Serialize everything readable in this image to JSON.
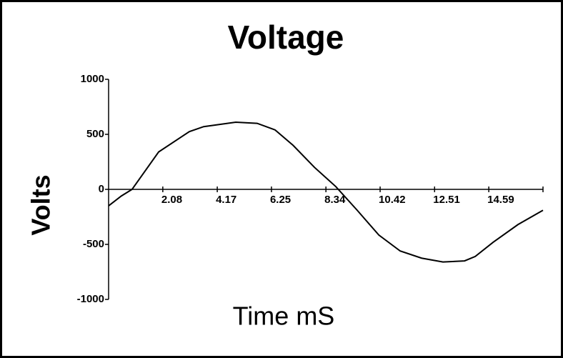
{
  "chart_data": {
    "type": "line",
    "title": "Voltage",
    "x_label": "Time mS",
    "y_label": "Volts",
    "x": [
      0,
      0.49,
      0.9,
      1.92,
      3.1,
      3.65,
      4.88,
      5.7,
      6.39,
      7.08,
      7.9,
      8.72,
      9.54,
      10.37,
      11.19,
      12.01,
      12.83,
      13.66,
      14.07,
      14.76,
      15.71,
      16.67
    ],
    "series": [
      {
        "name": "Voltage",
        "color": "#000000",
        "values": [
          -150,
          -60,
          0,
          340,
          525,
          570,
          610,
          600,
          540,
          400,
          200,
          25,
          -190,
          -415,
          -560,
          -625,
          -660,
          -650,
          -610,
          -480,
          -320,
          -190
        ]
      }
    ],
    "xlim": [
      0,
      16.67
    ],
    "xticks": [
      2.08,
      4.17,
      6.25,
      8.34,
      10.42,
      12.51,
      14.59
    ],
    "ylim": [
      -1000,
      1000
    ],
    "yticks": [
      -1000,
      -500,
      0,
      500,
      1000
    ]
  }
}
